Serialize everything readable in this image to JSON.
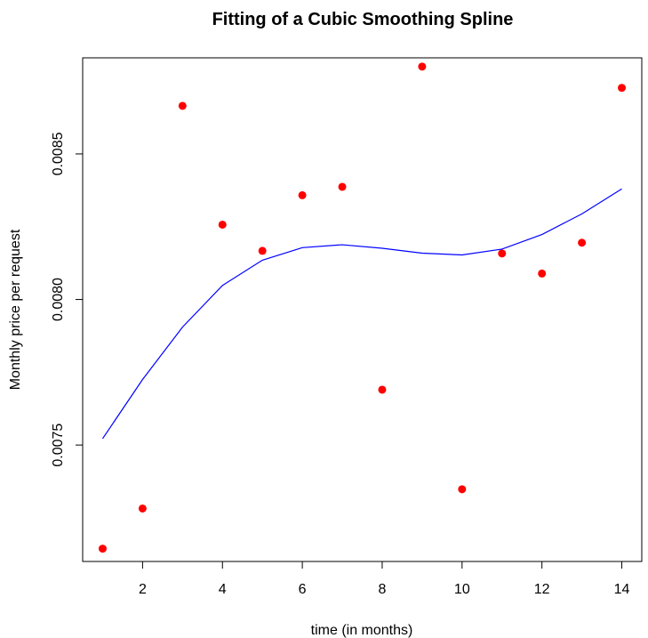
{
  "chart_data": {
    "type": "scatter",
    "title": "Fitting of a Cubic Smoothing Spline",
    "xlabel": "time (in months)",
    "ylabel": "Monthly price per request",
    "xlim": [
      0.5,
      14.5
    ],
    "ylim": [
      0.0071,
      0.00883
    ],
    "xticks": [
      2,
      4,
      6,
      8,
      10,
      12,
      14
    ],
    "xtick_labels": [
      "2",
      "4",
      "6",
      "8",
      "10",
      "12",
      "14"
    ],
    "yticks": [
      0.0075,
      0.008,
      0.0085
    ],
    "ytick_labels": [
      "0.0075",
      "0.0080",
      "0.0085"
    ],
    "grid": false,
    "series": [
      {
        "kind": "points",
        "color": "#ff0000",
        "x": [
          1,
          2,
          3,
          4,
          5,
          6,
          7,
          8,
          9,
          10,
          11,
          12,
          13,
          14
        ],
        "y": [
          0.007144,
          0.007282,
          0.008665,
          0.008257,
          0.008167,
          0.008358,
          0.008387,
          0.00769,
          0.0088,
          0.007348,
          0.008158,
          0.008089,
          0.008195,
          0.008727
        ]
      },
      {
        "kind": "line",
        "color": "#0000ff",
        "x": [
          1,
          2,
          3,
          4,
          5,
          6,
          7,
          8,
          9,
          10,
          11,
          12,
          13,
          14
        ],
        "y": [
          0.007522,
          0.007725,
          0.007905,
          0.008048,
          0.008135,
          0.008178,
          0.008188,
          0.008176,
          0.008159,
          0.008153,
          0.008173,
          0.008223,
          0.008294,
          0.00838
        ]
      }
    ]
  }
}
